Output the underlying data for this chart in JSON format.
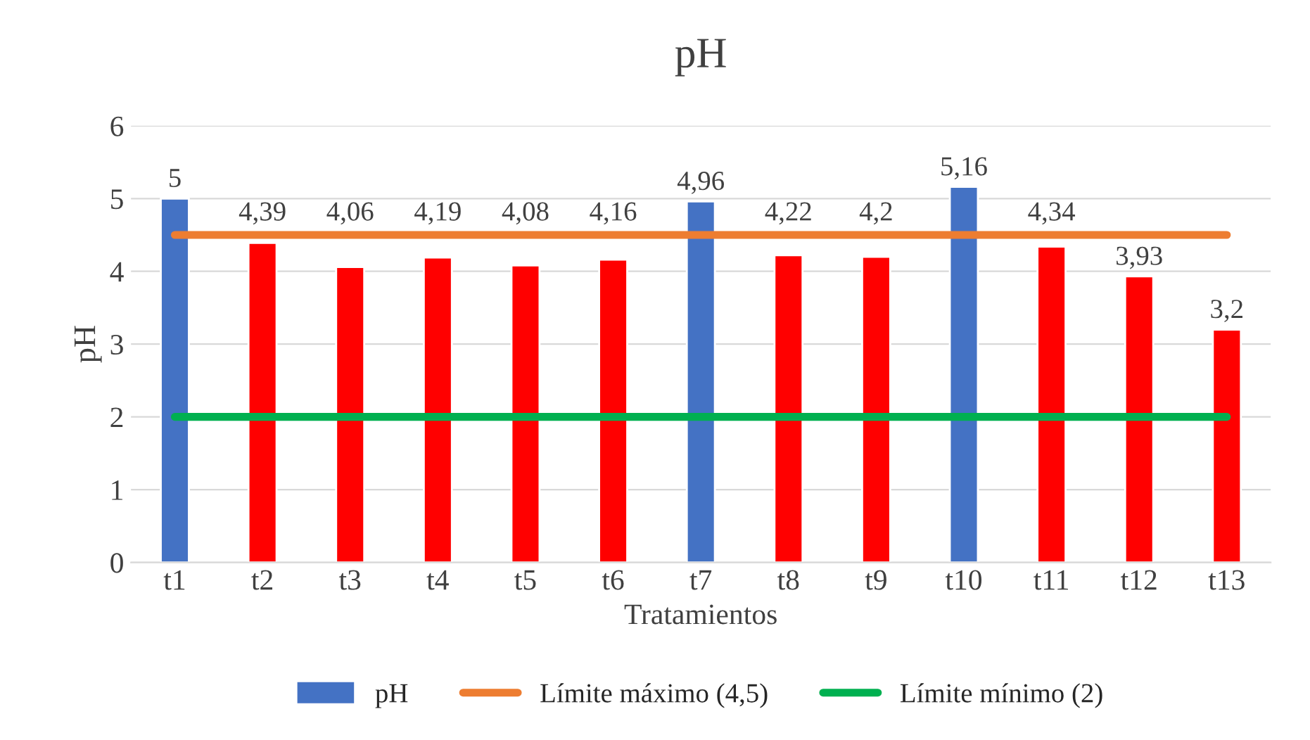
{
  "chart_data": {
    "type": "bar",
    "title": "pH",
    "xlabel": "Tratamientos",
    "ylabel": "pH",
    "categories": [
      "t1",
      "t2",
      "t3",
      "t4",
      "t5",
      "t6",
      "t7",
      "t8",
      "t9",
      "t10",
      "t11",
      "t12",
      "t13"
    ],
    "series": [
      {
        "name": "pH",
        "color": "#4472c4",
        "colors": [
          "#4472c4",
          "#ff0000",
          "#ff0000",
          "#ff0000",
          "#ff0000",
          "#ff0000",
          "#4472c4",
          "#ff0000",
          "#ff0000",
          "#4472c4",
          "#ff0000",
          "#ff0000",
          "#ff0000"
        ],
        "values": [
          5,
          4.39,
          4.06,
          4.19,
          4.08,
          4.16,
          4.96,
          4.22,
          4.2,
          5.16,
          4.34,
          3.93,
          3.2
        ],
        "value_labels": [
          "5",
          "4,39",
          "4,06",
          "4,19",
          "4,08",
          "4,16",
          "4,96",
          "4,22",
          "4,2",
          "5,16",
          "4,34",
          "3,93",
          "3,2"
        ]
      },
      {
        "name": "Límite máximo (4,5)",
        "type": "line",
        "color": "#ed7d31",
        "values": [
          4.5,
          4.5,
          4.5,
          4.5,
          4.5,
          4.5,
          4.5,
          4.5,
          4.5,
          4.5,
          4.5,
          4.5,
          4.5
        ]
      },
      {
        "name": "Límite mínimo (2)",
        "type": "line",
        "color": "#00b050",
        "values": [
          2,
          2,
          2,
          2,
          2,
          2,
          2,
          2,
          2,
          2,
          2,
          2,
          2
        ]
      }
    ],
    "ylim": [
      0,
      6
    ],
    "yticks": [
      0,
      1,
      2,
      3,
      4,
      5,
      6
    ],
    "grid": "y",
    "legend": "bottom"
  }
}
